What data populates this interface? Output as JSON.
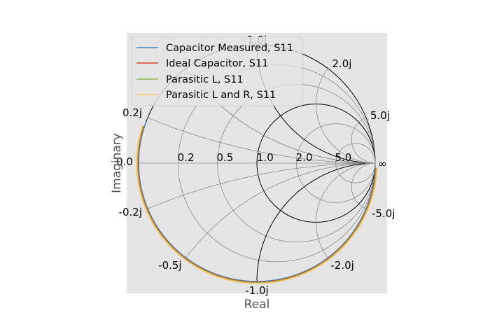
{
  "chart_data": {
    "type": "smith",
    "xlabel": "Real",
    "ylabel": "Imaginary",
    "legend_position": "top-left",
    "grid": true,
    "colors": {
      "background": "#e5e5e5",
      "grid": "#8c8c8c",
      "unit_circle": "#000000"
    },
    "resistance_labels": [
      "0.0",
      "0.2",
      "0.5",
      "1.0",
      "2.0",
      "5.0"
    ],
    "reactance_labels": {
      "positive": [
        "0.2j",
        "1.0j",
        "2.0j",
        "5.0j"
      ],
      "negative": [
        "-0.2j",
        "-0.5j",
        "-1.0j",
        "-2.0j",
        "-5.0j"
      ],
      "infinity": "∞"
    },
    "series": [
      {
        "name": "Capacitor Measured, S11",
        "color": "#348abd",
        "reactance_start": 0.18,
        "reactance_end": 50,
        "resistance": 0.0
      },
      {
        "name": "Ideal Capacitor, S11",
        "color": "#e24a33",
        "reactance_start": 0.16,
        "reactance_end": 50,
        "resistance": 0.0
      },
      {
        "name": "Parasitic L, S11",
        "color": "#8eba42",
        "reactance_start": 0.16,
        "reactance_end": 50,
        "resistance": 0.0
      },
      {
        "name": "Parasitic L and R, S11",
        "color": "#fbc15e",
        "reactance_start": 0.16,
        "reactance_end": 50,
        "resistance": 0.0
      }
    ]
  }
}
